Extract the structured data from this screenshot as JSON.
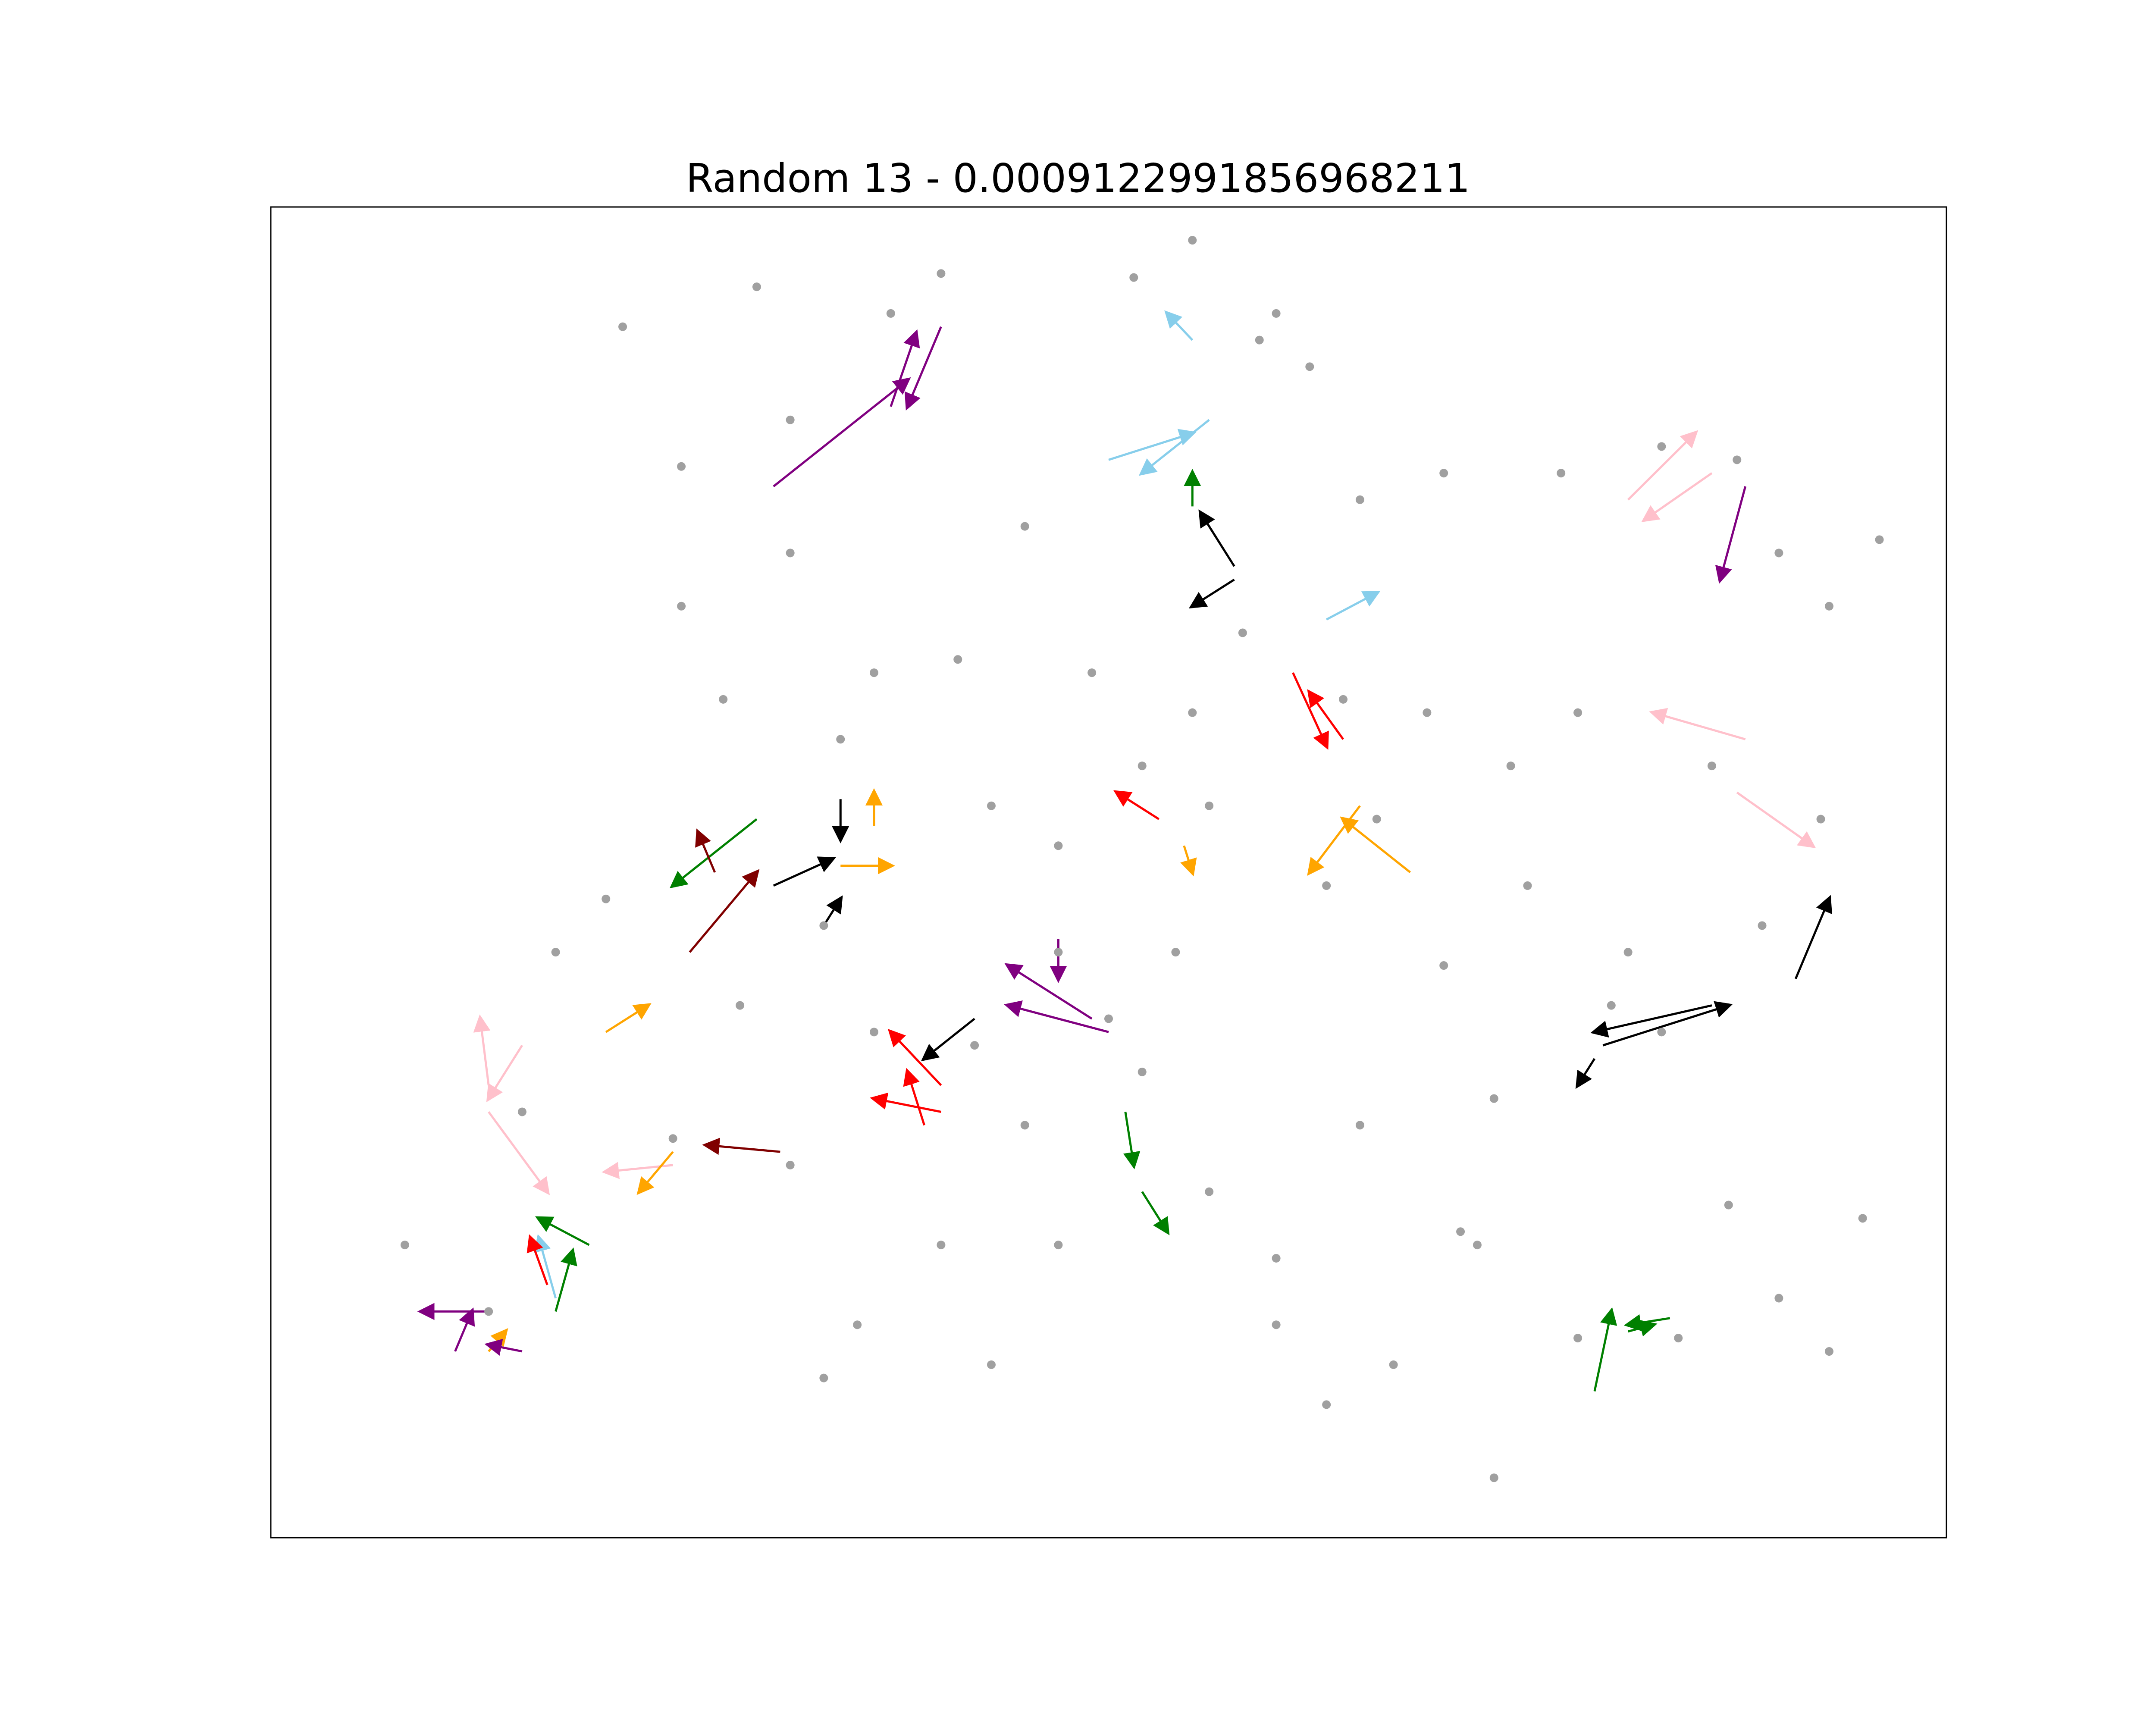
{
  "chart_data": {
    "type": "scatter",
    "title": "Random 13 - 0.0009122991856968211",
    "xlabel": "",
    "ylabel": "",
    "xlim": [
      0,
      1
    ],
    "ylim": [
      0,
      1
    ],
    "grid": false,
    "axes_ticks": false,
    "point_color": "#a0a0a0",
    "points": [
      [
        0.21,
        0.91
      ],
      [
        0.245,
        0.805
      ],
      [
        0.29,
        0.94
      ],
      [
        0.31,
        0.84
      ],
      [
        0.37,
        0.92
      ],
      [
        0.4,
        0.95
      ],
      [
        0.45,
        0.76
      ],
      [
        0.515,
        0.947
      ],
      [
        0.55,
        0.975
      ],
      [
        0.6,
        0.92
      ],
      [
        0.62,
        0.88
      ],
      [
        0.59,
        0.9
      ],
      [
        0.65,
        0.78
      ],
      [
        0.7,
        0.8
      ],
      [
        0.77,
        0.8
      ],
      [
        0.83,
        0.82
      ],
      [
        0.9,
        0.74
      ],
      [
        0.93,
        0.7
      ],
      [
        0.925,
        0.54
      ],
      [
        0.875,
        0.81
      ],
      [
        0.96,
        0.75
      ],
      [
        0.245,
        0.7
      ],
      [
        0.27,
        0.63
      ],
      [
        0.31,
        0.74
      ],
      [
        0.34,
        0.6
      ],
      [
        0.36,
        0.65
      ],
      [
        0.41,
        0.66
      ],
      [
        0.43,
        0.55
      ],
      [
        0.47,
        0.52
      ],
      [
        0.54,
        0.44
      ],
      [
        0.56,
        0.55
      ],
      [
        0.63,
        0.49
      ],
      [
        0.66,
        0.54
      ],
      [
        0.75,
        0.49
      ],
      [
        0.8,
        0.4
      ],
      [
        0.17,
        0.44
      ],
      [
        0.2,
        0.48
      ],
      [
        0.24,
        0.3
      ],
      [
        0.31,
        0.28
      ],
      [
        0.36,
        0.38
      ],
      [
        0.4,
        0.22
      ],
      [
        0.45,
        0.31
      ],
      [
        0.52,
        0.35
      ],
      [
        0.56,
        0.26
      ],
      [
        0.6,
        0.21
      ],
      [
        0.65,
        0.31
      ],
      [
        0.71,
        0.23
      ],
      [
        0.73,
        0.33
      ],
      [
        0.78,
        0.15
      ],
      [
        0.83,
        0.38
      ],
      [
        0.87,
        0.25
      ],
      [
        0.9,
        0.18
      ],
      [
        0.95,
        0.24
      ],
      [
        0.93,
        0.14
      ],
      [
        0.84,
        0.15
      ],
      [
        0.73,
        0.045
      ],
      [
        0.08,
        0.22
      ],
      [
        0.13,
        0.17
      ],
      [
        0.15,
        0.32
      ],
      [
        0.33,
        0.12
      ],
      [
        0.35,
        0.16
      ],
      [
        0.43,
        0.13
      ],
      [
        0.47,
        0.22
      ],
      [
        0.6,
        0.16
      ],
      [
        0.67,
        0.13
      ],
      [
        0.7,
        0.43
      ],
      [
        0.63,
        0.1
      ],
      [
        0.72,
        0.22
      ],
      [
        0.55,
        0.62
      ],
      [
        0.58,
        0.68
      ],
      [
        0.64,
        0.63
      ],
      [
        0.69,
        0.62
      ],
      [
        0.74,
        0.58
      ],
      [
        0.78,
        0.62
      ],
      [
        0.86,
        0.58
      ],
      [
        0.89,
        0.46
      ],
      [
        0.81,
        0.44
      ],
      [
        0.47,
        0.44
      ],
      [
        0.5,
        0.39
      ],
      [
        0.42,
        0.37
      ],
      [
        0.33,
        0.46
      ],
      [
        0.28,
        0.4
      ],
      [
        0.52,
        0.58
      ],
      [
        0.49,
        0.65
      ]
    ],
    "segments": [
      {
        "color": "#800080",
        "from": [
          0.3,
          0.79
        ],
        "to": [
          0.38,
          0.87
        ]
      },
      {
        "color": "#800080",
        "from": [
          0.37,
          0.85
        ],
        "to": [
          0.385,
          0.905
        ]
      },
      {
        "color": "#800080",
        "from": [
          0.4,
          0.91
        ],
        "to": [
          0.38,
          0.85
        ]
      },
      {
        "color": "#87ceeb",
        "from": [
          0.55,
          0.9
        ],
        "to": [
          0.535,
          0.92
        ]
      },
      {
        "color": "#87ceeb",
        "from": [
          0.56,
          0.84
        ],
        "to": [
          0.52,
          0.8
        ]
      },
      {
        "color": "#87ceeb",
        "from": [
          0.5,
          0.81
        ],
        "to": [
          0.55,
          0.83
        ]
      },
      {
        "color": "#008000",
        "from": [
          0.55,
          0.775
        ],
        "to": [
          0.55,
          0.8
        ]
      },
      {
        "color": "#000000",
        "from": [
          0.575,
          0.73
        ],
        "to": [
          0.555,
          0.77
        ]
      },
      {
        "color": "#000000",
        "from": [
          0.575,
          0.72
        ],
        "to": [
          0.55,
          0.7
        ]
      },
      {
        "color": "#ff0000",
        "from": [
          0.53,
          0.54
        ],
        "to": [
          0.505,
          0.56
        ]
      },
      {
        "color": "#ffa500",
        "from": [
          0.545,
          0.52
        ],
        "to": [
          0.55,
          0.5
        ]
      },
      {
        "color": "#87ceeb",
        "from": [
          0.63,
          0.69
        ],
        "to": [
          0.66,
          0.71
        ]
      },
      {
        "color": "#ff0000",
        "from": [
          0.61,
          0.65
        ],
        "to": [
          0.63,
          0.595
        ]
      },
      {
        "color": "#ff0000",
        "from": [
          0.64,
          0.6
        ],
        "to": [
          0.62,
          0.635
        ]
      },
      {
        "color": "#ffa500",
        "from": [
          0.68,
          0.5
        ],
        "to": [
          0.64,
          0.54
        ]
      },
      {
        "color": "#ffa500",
        "from": [
          0.65,
          0.55
        ],
        "to": [
          0.62,
          0.5
        ]
      },
      {
        "color": "#ffc0cb",
        "from": [
          0.88,
          0.6
        ],
        "to": [
          0.825,
          0.62
        ]
      },
      {
        "color": "#ffc0cb",
        "from": [
          0.875,
          0.56
        ],
        "to": [
          0.92,
          0.52
        ]
      },
      {
        "color": "#ffc0cb",
        "from": [
          0.81,
          0.78
        ],
        "to": [
          0.85,
          0.83
        ]
      },
      {
        "color": "#ffc0cb",
        "from": [
          0.86,
          0.8
        ],
        "to": [
          0.82,
          0.765
        ]
      },
      {
        "color": "#800080",
        "from": [
          0.88,
          0.79
        ],
        "to": [
          0.865,
          0.72
        ]
      },
      {
        "color": "#000000",
        "from": [
          0.91,
          0.42
        ],
        "to": [
          0.93,
          0.48
        ]
      },
      {
        "color": "#000000",
        "from": [
          0.795,
          0.37
        ],
        "to": [
          0.87,
          0.4
        ]
      },
      {
        "color": "#000000",
        "from": [
          0.86,
          0.4
        ],
        "to": [
          0.79,
          0.38
        ]
      },
      {
        "color": "#000000",
        "from": [
          0.79,
          0.36
        ],
        "to": [
          0.78,
          0.34
        ]
      },
      {
        "color": "#008000",
        "from": [
          0.79,
          0.11
        ],
        "to": [
          0.8,
          0.17
        ]
      },
      {
        "color": "#008000",
        "from": [
          0.835,
          0.165
        ],
        "to": [
          0.81,
          0.16
        ]
      },
      {
        "color": "#008000",
        "from": [
          0.81,
          0.155
        ],
        "to": [
          0.825,
          0.16
        ]
      },
      {
        "color": "#008000",
        "from": [
          0.52,
          0.26
        ],
        "to": [
          0.535,
          0.23
        ]
      },
      {
        "color": "#008000",
        "from": [
          0.51,
          0.32
        ],
        "to": [
          0.515,
          0.28
        ]
      },
      {
        "color": "#800080",
        "from": [
          0.49,
          0.39
        ],
        "to": [
          0.44,
          0.43
        ]
      },
      {
        "color": "#800080",
        "from": [
          0.5,
          0.38
        ],
        "to": [
          0.44,
          0.4
        ]
      },
      {
        "color": "#800080",
        "from": [
          0.47,
          0.45
        ],
        "to": [
          0.47,
          0.42
        ]
      },
      {
        "color": "#000000",
        "from": [
          0.42,
          0.39
        ],
        "to": [
          0.39,
          0.36
        ]
      },
      {
        "color": "#ff0000",
        "from": [
          0.4,
          0.34
        ],
        "to": [
          0.37,
          0.38
        ]
      },
      {
        "color": "#ff0000",
        "from": [
          0.4,
          0.32
        ],
        "to": [
          0.36,
          0.33
        ]
      },
      {
        "color": "#ff0000",
        "from": [
          0.39,
          0.31
        ],
        "to": [
          0.38,
          0.35
        ]
      },
      {
        "color": "#008000",
        "from": [
          0.29,
          0.54
        ],
        "to": [
          0.24,
          0.49
        ]
      },
      {
        "color": "#800000",
        "from": [
          0.25,
          0.44
        ],
        "to": [
          0.29,
          0.5
        ]
      },
      {
        "color": "#800000",
        "from": [
          0.265,
          0.5
        ],
        "to": [
          0.255,
          0.53
        ]
      },
      {
        "color": "#ffa500",
        "from": [
          0.2,
          0.38
        ],
        "to": [
          0.225,
          0.4
        ]
      },
      {
        "color": "#000000",
        "from": [
          0.34,
          0.555
        ],
        "to": [
          0.34,
          0.525
        ]
      },
      {
        "color": "#000000",
        "from": [
          0.3,
          0.49
        ],
        "to": [
          0.335,
          0.51
        ]
      },
      {
        "color": "#000000",
        "from": [
          0.33,
          0.46
        ],
        "to": [
          0.34,
          0.48
        ]
      },
      {
        "color": "#ffa500",
        "from": [
          0.36,
          0.535
        ],
        "to": [
          0.36,
          0.56
        ]
      },
      {
        "color": "#ffa500",
        "from": [
          0.34,
          0.505
        ],
        "to": [
          0.37,
          0.505
        ]
      },
      {
        "color": "#ffc0cb",
        "from": [
          0.13,
          0.34
        ],
        "to": [
          0.125,
          0.39
        ]
      },
      {
        "color": "#ffc0cb",
        "from": [
          0.15,
          0.37
        ],
        "to": [
          0.13,
          0.33
        ]
      },
      {
        "color": "#ffc0cb",
        "from": [
          0.13,
          0.32
        ],
        "to": [
          0.165,
          0.26
        ]
      },
      {
        "color": "#ffc0cb",
        "from": [
          0.24,
          0.28
        ],
        "to": [
          0.2,
          0.275
        ]
      },
      {
        "color": "#ffa500",
        "from": [
          0.24,
          0.29
        ],
        "to": [
          0.22,
          0.26
        ]
      },
      {
        "color": "#800000",
        "from": [
          0.304,
          0.29
        ],
        "to": [
          0.26,
          0.295
        ]
      },
      {
        "color": "#008000",
        "from": [
          0.19,
          0.22
        ],
        "to": [
          0.16,
          0.24
        ]
      },
      {
        "color": "#008000",
        "from": [
          0.17,
          0.17
        ],
        "to": [
          0.18,
          0.215
        ]
      },
      {
        "color": "#87ceeb",
        "from": [
          0.17,
          0.18
        ],
        "to": [
          0.16,
          0.225
        ]
      },
      {
        "color": "#ff0000",
        "from": [
          0.165,
          0.19
        ],
        "to": [
          0.155,
          0.225
        ]
      },
      {
        "color": "#800080",
        "from": [
          0.13,
          0.17
        ],
        "to": [
          0.09,
          0.17
        ]
      },
      {
        "color": "#800080",
        "from": [
          0.11,
          0.14
        ],
        "to": [
          0.12,
          0.17
        ]
      },
      {
        "color": "#ffa500",
        "from": [
          0.13,
          0.14
        ],
        "to": [
          0.14,
          0.155
        ]
      },
      {
        "color": "#800080",
        "from": [
          0.15,
          0.14
        ],
        "to": [
          0.13,
          0.145
        ]
      }
    ]
  }
}
